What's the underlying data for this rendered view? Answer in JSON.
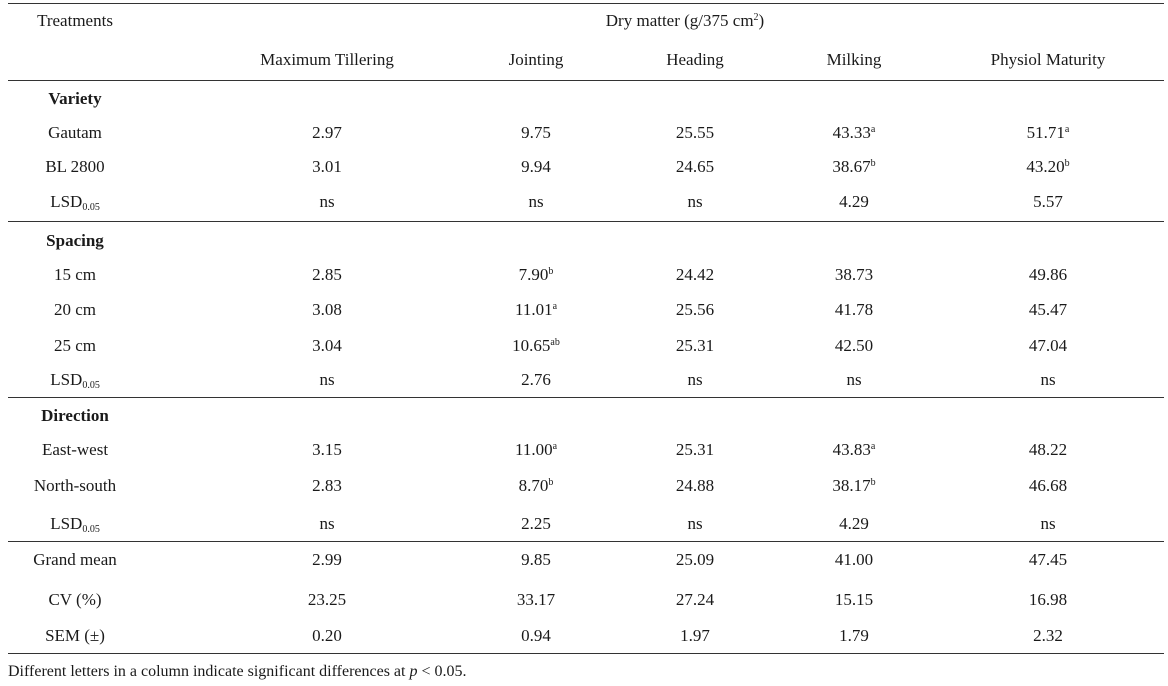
{
  "header": {
    "treatments": "Treatments",
    "dry_matter_prefix": "Dry matter (g/375 cm",
    "dry_matter_sup": "2",
    "dry_matter_suffix": ")",
    "stages": [
      "Maximum Tillering",
      "Jointing",
      "Heading",
      "Milking",
      "Physiol Maturity"
    ]
  },
  "groups": [
    {
      "name": "Variety",
      "rows": [
        {
          "label": "Gautam",
          "cells": [
            {
              "v": "2.97",
              "s": ""
            },
            {
              "v": "9.75",
              "s": ""
            },
            {
              "v": "25.55",
              "s": ""
            },
            {
              "v": "43.33",
              "s": "a"
            },
            {
              "v": "51.71",
              "s": "a"
            }
          ]
        },
        {
          "label": "BL 2800",
          "cells": [
            {
              "v": "3.01",
              "s": ""
            },
            {
              "v": "9.94",
              "s": ""
            },
            {
              "v": "24.65",
              "s": ""
            },
            {
              "v": "38.67",
              "s": "b"
            },
            {
              "v": "43.20",
              "s": "b"
            }
          ]
        }
      ],
      "lsd": {
        "label": "LSD",
        "sub": "0.05",
        "cells": [
          "ns",
          "ns",
          "ns",
          "4.29",
          "5.57"
        ]
      }
    },
    {
      "name": "Spacing",
      "rows": [
        {
          "label": "15 cm",
          "cells": [
            {
              "v": "2.85",
              "s": ""
            },
            {
              "v": "7.90",
              "s": "b"
            },
            {
              "v": "24.42",
              "s": ""
            },
            {
              "v": "38.73",
              "s": ""
            },
            {
              "v": "49.86",
              "s": ""
            }
          ]
        },
        {
          "label": "20 cm",
          "cells": [
            {
              "v": "3.08",
              "s": ""
            },
            {
              "v": "11.01",
              "s": "a"
            },
            {
              "v": "25.56",
              "s": ""
            },
            {
              "v": "41.78",
              "s": ""
            },
            {
              "v": "45.47",
              "s": ""
            }
          ]
        },
        {
          "label": "25 cm",
          "cells": [
            {
              "v": "3.04",
              "s": ""
            },
            {
              "v": "10.65",
              "s": "ab"
            },
            {
              "v": "25.31",
              "s": ""
            },
            {
              "v": "42.50",
              "s": ""
            },
            {
              "v": "47.04",
              "s": ""
            }
          ]
        }
      ],
      "lsd": {
        "label": "LSD",
        "sub": "0.05",
        "cells": [
          "ns",
          "2.76",
          "ns",
          "ns",
          "ns"
        ]
      }
    },
    {
      "name": "Direction",
      "rows": [
        {
          "label": "East-west",
          "cells": [
            {
              "v": "3.15",
              "s": ""
            },
            {
              "v": "11.00",
              "s": "a"
            },
            {
              "v": "25.31",
              "s": ""
            },
            {
              "v": "43.83",
              "s": "a"
            },
            {
              "v": "48.22",
              "s": ""
            }
          ]
        },
        {
          "label": "North-south",
          "cells": [
            {
              "v": "2.83",
              "s": ""
            },
            {
              "v": "8.70",
              "s": "b"
            },
            {
              "v": "24.88",
              "s": ""
            },
            {
              "v": "38.17",
              "s": "b"
            },
            {
              "v": "46.68",
              "s": ""
            }
          ]
        }
      ],
      "lsd": {
        "label": "LSD",
        "sub": "0.05",
        "cells": [
          "ns",
          "2.25",
          "ns",
          "4.29",
          "ns"
        ]
      }
    }
  ],
  "summary": [
    {
      "label": "Grand mean",
      "cells": [
        "2.99",
        "9.85",
        "25.09",
        "41.00",
        "47.45"
      ]
    },
    {
      "label": "CV (%)",
      "cells": [
        "23.25",
        "33.17",
        "27.24",
        "15.15",
        "16.98"
      ]
    },
    {
      "label": "SEM (±)",
      "cells": [
        "0.20",
        "0.94",
        "1.97",
        "1.79",
        "2.32"
      ]
    }
  ],
  "footnote": {
    "before": "Different letters in a column indicate significant differences at ",
    "italic": "p",
    "after": " < 0.05."
  }
}
